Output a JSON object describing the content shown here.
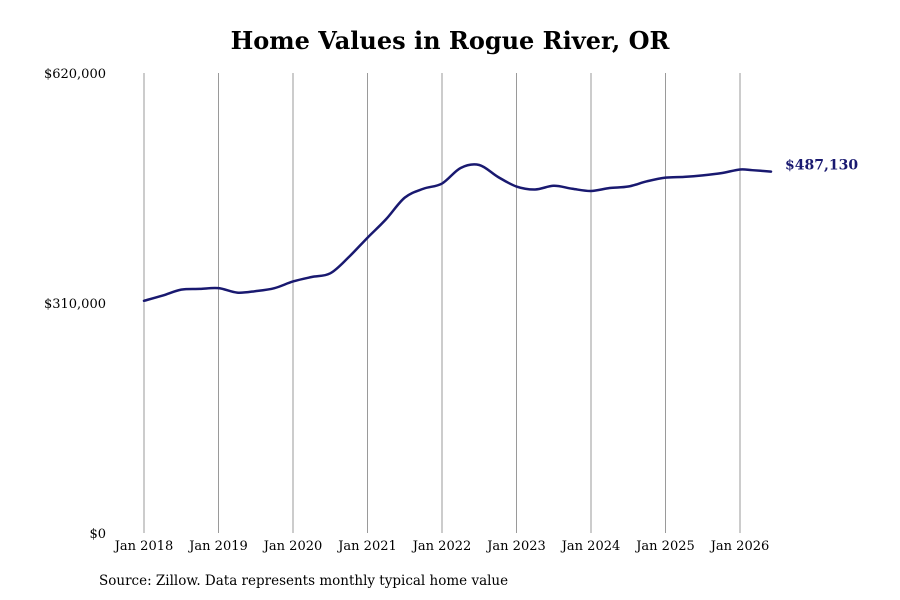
{
  "chart_data": {
    "type": "line",
    "title": "Home Values in Rogue River, OR",
    "source": "Source: Zillow. Data represents monthly typical home value",
    "ylim": [
      0,
      620000
    ],
    "y_ticks": [
      {
        "value": 0,
        "label": "$0"
      },
      {
        "value": 310000,
        "label": "$310,000"
      },
      {
        "value": 620000,
        "label": "$620,000"
      }
    ],
    "x_ticks": [
      {
        "value": "2018-01",
        "label": "Jan 2018"
      },
      {
        "value": "2019-01",
        "label": "Jan 2019"
      },
      {
        "value": "2020-01",
        "label": "Jan 2020"
      },
      {
        "value": "2021-01",
        "label": "Jan 2021"
      },
      {
        "value": "2022-01",
        "label": "Jan 2022"
      },
      {
        "value": "2023-01",
        "label": "Jan 2023"
      },
      {
        "value": "2024-01",
        "label": "Jan 2024"
      },
      {
        "value": "2025-01",
        "label": "Jan 2025"
      },
      {
        "value": "2026-01",
        "label": "Jan 2026"
      }
    ],
    "grid": "vertical",
    "line_color": "#191970",
    "end_label": "$487,130",
    "series": [
      {
        "x": [
          "2018-01",
          "2018-04",
          "2018-07",
          "2018-10",
          "2019-01",
          "2019-04",
          "2019-07",
          "2019-10",
          "2020-01",
          "2020-04",
          "2020-07",
          "2020-10",
          "2021-01",
          "2021-04",
          "2021-07",
          "2021-10",
          "2022-01",
          "2022-04",
          "2022-07",
          "2022-10",
          "2023-01",
          "2023-04",
          "2023-07",
          "2023-10",
          "2024-01",
          "2024-04",
          "2024-07",
          "2024-10",
          "2025-01",
          "2025-04",
          "2025-07",
          "2025-10",
          "2026-01",
          "2026-03",
          "2026-06"
        ],
        "values": [
          313000,
          320000,
          328000,
          329000,
          330000,
          324000,
          326000,
          330000,
          339000,
          345000,
          350000,
          372000,
          398000,
          423000,
          452000,
          464000,
          471000,
          492000,
          496000,
          480000,
          467000,
          463000,
          468000,
          464000,
          461000,
          465000,
          467000,
          474000,
          479000,
          480000,
          482000,
          485000,
          490000,
          489000,
          487130
        ]
      }
    ]
  }
}
